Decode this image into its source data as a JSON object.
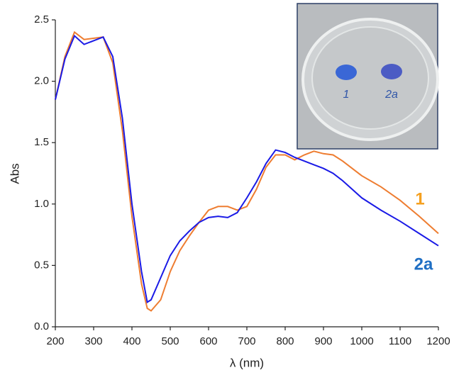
{
  "chart_data": {
    "type": "line",
    "x_label": "λ (nm)",
    "y_label": "Abs",
    "xlim": [
      200,
      1200
    ],
    "ylim": [
      0,
      2.5
    ],
    "xticks": [
      200,
      300,
      400,
      500,
      600,
      700,
      800,
      900,
      1000,
      1100,
      1200
    ],
    "yticks": [
      {
        "value": 0,
        "label": "0.0"
      },
      0.5,
      {
        "value": 1,
        "label": "1.0"
      },
      1.5,
      {
        "value": 2,
        "label": "2.0"
      },
      2.5
    ],
    "x": [
      200,
      225,
      250,
      275,
      300,
      325,
      350,
      375,
      400,
      425,
      440,
      450,
      475,
      500,
      525,
      550,
      575,
      600,
      625,
      650,
      675,
      700,
      725,
      750,
      775,
      800,
      825,
      850,
      875,
      900,
      925,
      950,
      1000,
      1050,
      1100,
      1150,
      1200
    ],
    "series": [
      {
        "name": "1",
        "color": "#ee7d31",
        "label_color": "#f5a020",
        "values": [
          1.85,
          2.2,
          2.4,
          2.34,
          2.35,
          2.36,
          2.15,
          1.6,
          0.9,
          0.35,
          0.15,
          0.13,
          0.22,
          0.45,
          0.62,
          0.74,
          0.85,
          0.95,
          0.98,
          0.98,
          0.95,
          0.98,
          1.12,
          1.3,
          1.4,
          1.4,
          1.36,
          1.4,
          1.43,
          1.41,
          1.4,
          1.35,
          1.23,
          1.14,
          1.03,
          0.9,
          0.76
        ]
      },
      {
        "name": "2a",
        "color": "#1a1ae6",
        "label_color": "#1f6fc4",
        "values": [
          1.85,
          2.18,
          2.37,
          2.3,
          2.33,
          2.36,
          2.2,
          1.7,
          1.0,
          0.45,
          0.2,
          0.22,
          0.4,
          0.58,
          0.7,
          0.78,
          0.85,
          0.89,
          0.9,
          0.89,
          0.93,
          1.05,
          1.18,
          1.33,
          1.44,
          1.42,
          1.38,
          1.35,
          1.32,
          1.29,
          1.25,
          1.19,
          1.05,
          0.95,
          0.86,
          0.76,
          0.66
        ]
      }
    ],
    "inset": {
      "labels": [
        "1",
        "2a"
      ]
    }
  }
}
